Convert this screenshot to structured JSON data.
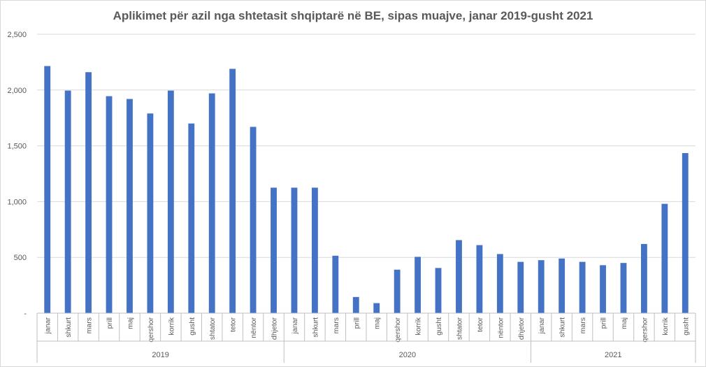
{
  "chart_data": {
    "type": "bar",
    "title": "Aplikimet për azil nga shtetasit shqiptarë në BE, sipas muajve, janar 2019-gusht 2021",
    "xlabel": "",
    "ylabel": "",
    "ylim": [
      0,
      2500
    ],
    "yticks": [
      "-",
      "500",
      "1,000",
      "1,500",
      "2,000",
      "2,500"
    ],
    "grid": true,
    "legend": "none",
    "color": "#4472c4",
    "groups": [
      {
        "year": "2019",
        "categories": [
          "janar",
          "shkurt",
          "mars",
          "prill",
          "maj",
          "qershor",
          "korrik",
          "gusht",
          "shtator",
          "tetor",
          "nëntor",
          "dhjetor"
        ],
        "values": [
          2215,
          1995,
          2160,
          1945,
          1920,
          1790,
          1995,
          1700,
          1970,
          2190,
          1670,
          1125
        ]
      },
      {
        "year": "2020",
        "categories": [
          "janar",
          "shkurt",
          "mars",
          "prill",
          "maj",
          "qershor",
          "korrik",
          "gusht",
          "shtator",
          "tetor",
          "nëntor",
          "dhjetor"
        ],
        "values": [
          1125,
          1125,
          515,
          145,
          90,
          390,
          505,
          405,
          655,
          610,
          530,
          460
        ]
      },
      {
        "year": "2021",
        "categories": [
          "janar",
          "shkurt",
          "mars",
          "prill",
          "maj",
          "qershor",
          "korrik",
          "gusht"
        ],
        "values": [
          475,
          490,
          460,
          430,
          450,
          620,
          980,
          1435
        ]
      }
    ]
  }
}
